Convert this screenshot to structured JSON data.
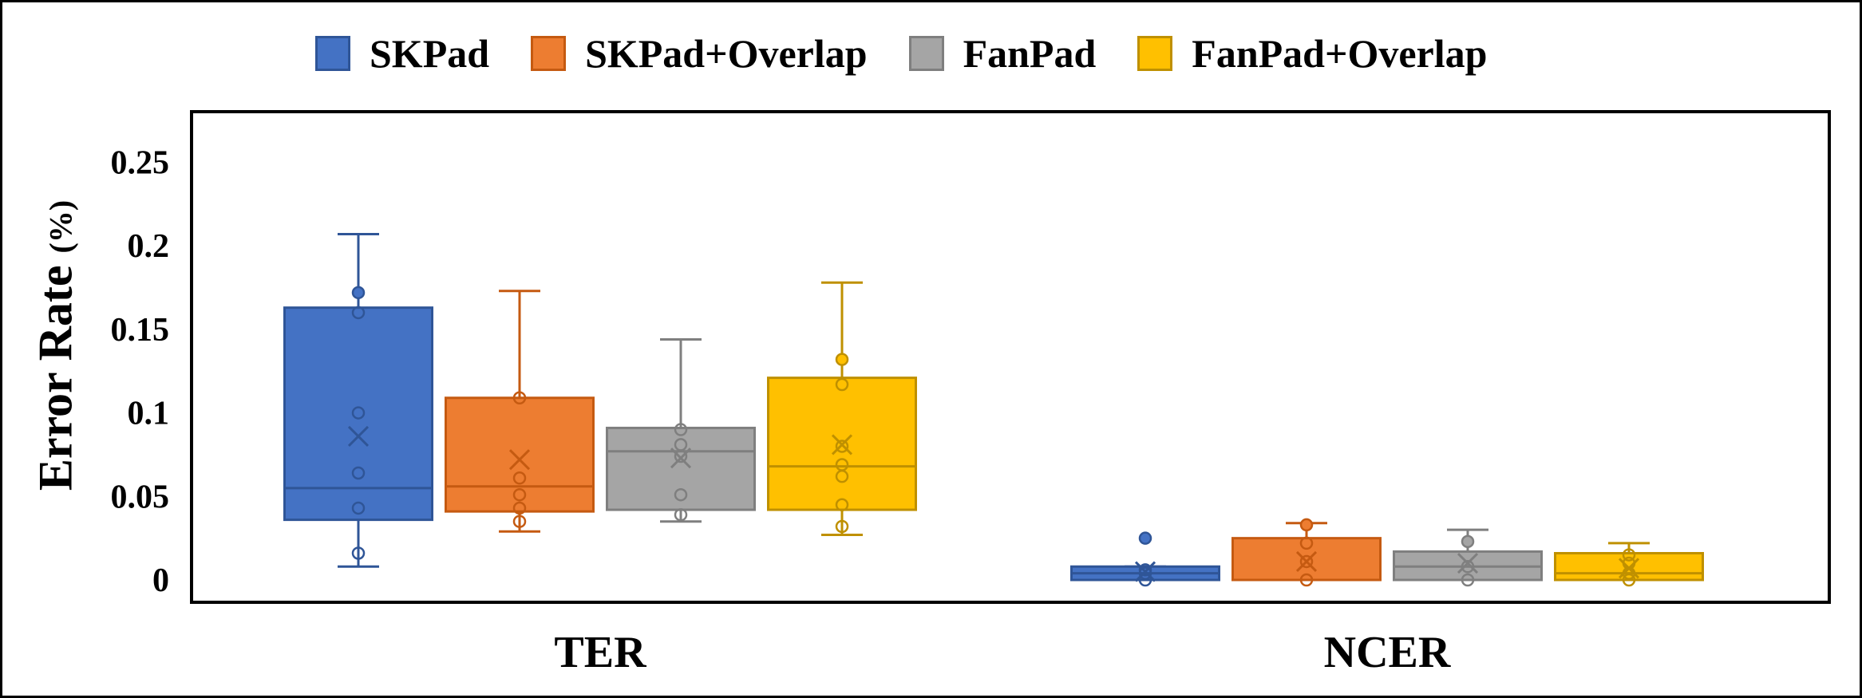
{
  "chart_data": {
    "type": "box",
    "title": "",
    "xlabel": "",
    "ylabel": "Error Rate",
    "ylabel_unit": "(%)",
    "ylim": [
      0,
      0.28
    ],
    "yticks": [
      0,
      0.05,
      0.1,
      0.15,
      0.2,
      0.25
    ],
    "ytick_labels": [
      "0",
      "0.05",
      "0.1",
      "0.15",
      "0.2",
      "0.25"
    ],
    "grid": false,
    "legend_position": "top",
    "categories": [
      "TER",
      "NCER"
    ],
    "series": [
      {
        "name": "SKPad",
        "color": "#4472C4",
        "boxes": [
          {
            "min": 0.008,
            "q1": 0.036,
            "median": 0.055,
            "q3": 0.163,
            "max": 0.207,
            "mean": 0.086,
            "points": [
              0.016,
              0.043,
              0.064,
              0.1,
              0.16,
              0.172
            ]
          },
          {
            "min": 0.0,
            "q1": 0.0,
            "median": 0.004,
            "q3": 0.008,
            "max": 0.008,
            "mean": 0.005,
            "points": [
              0.0,
              0.004,
              0.006,
              0.025
            ]
          }
        ]
      },
      {
        "name": "SKPad+Overlap",
        "color": "#ED7D31",
        "boxes": [
          {
            "min": 0.029,
            "q1": 0.041,
            "median": 0.056,
            "q3": 0.109,
            "max": 0.173,
            "mean": 0.072,
            "points": [
              0.035,
              0.043,
              0.051,
              0.061,
              0.109
            ]
          },
          {
            "min": 0.0,
            "q1": 0.0,
            "median": 0.0,
            "q3": 0.025,
            "max": 0.034,
            "mean": 0.011,
            "points": [
              0.0,
              0.011,
              0.022,
              0.033
            ]
          }
        ]
      },
      {
        "name": "FanPad",
        "color": "#A5A5A5",
        "boxes": [
          {
            "min": 0.035,
            "q1": 0.042,
            "median": 0.077,
            "q3": 0.091,
            "max": 0.144,
            "mean": 0.073,
            "points": [
              0.039,
              0.051,
              0.074,
              0.081,
              0.09
            ]
          },
          {
            "min": 0.0,
            "q1": 0.0,
            "median": 0.008,
            "q3": 0.017,
            "max": 0.03,
            "mean": 0.01,
            "points": [
              0.0,
              0.008,
              0.023
            ]
          }
        ]
      },
      {
        "name": "FanPad+Overlap",
        "color": "#FFC000",
        "boxes": [
          {
            "min": 0.027,
            "q1": 0.042,
            "median": 0.068,
            "q3": 0.121,
            "max": 0.178,
            "mean": 0.081,
            "points": [
              0.032,
              0.045,
              0.062,
              0.069,
              0.08,
              0.117,
              0.132
            ]
          },
          {
            "min": 0.0,
            "q1": 0.0,
            "median": 0.004,
            "q3": 0.016,
            "max": 0.022,
            "mean": 0.007,
            "points": [
              0.0,
              0.004,
              0.01,
              0.015
            ]
          }
        ]
      }
    ]
  }
}
